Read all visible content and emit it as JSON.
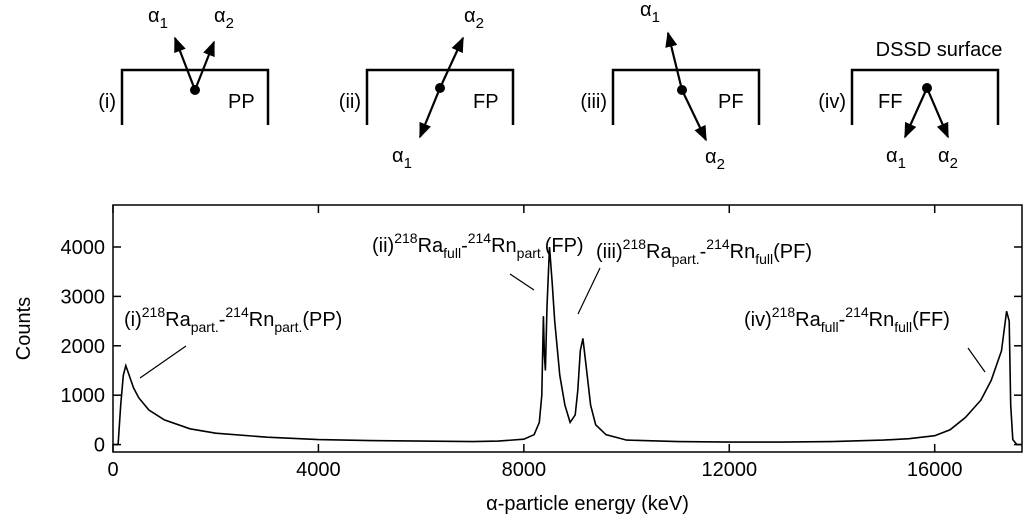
{
  "diagram": {
    "surface_label": "DSSD surface",
    "panels": [
      {
        "label": "(i)",
        "mode": "PP",
        "alphas": [
          {
            "symbol": "α",
            "index": "1"
          },
          {
            "symbol": "α",
            "index": "2"
          }
        ]
      },
      {
        "label": "(ii)",
        "mode": "FP",
        "alphas": [
          {
            "symbol": "α",
            "index": "1"
          },
          {
            "symbol": "α",
            "index": "2"
          }
        ]
      },
      {
        "label": "(iii)",
        "mode": "PF",
        "alphas": [
          {
            "symbol": "α",
            "index": "1"
          },
          {
            "symbol": "α",
            "index": "2"
          }
        ]
      },
      {
        "label": "(iv)",
        "mode": "FF",
        "alphas": [
          {
            "symbol": "α",
            "index": "1"
          },
          {
            "symbol": "α",
            "index": "2"
          }
        ]
      }
    ]
  },
  "chart_data": {
    "type": "line",
    "x_label": "α-particle energy (keV)",
    "y_label": "Counts",
    "xlim": [
      0,
      17700
    ],
    "xticks": [
      0,
      4000,
      8000,
      12000,
      16000
    ],
    "ylim": [
      -150,
      4850
    ],
    "yticks": [
      0,
      1000,
      2000,
      3000,
      4000
    ],
    "color": "#000000",
    "x": [
      0,
      100,
      150,
      200,
      250,
      300,
      400,
      500,
      700,
      1000,
      1500,
      2000,
      3000,
      4000,
      5000,
      6000,
      7000,
      7500,
      8000,
      8200,
      8300,
      8350,
      8380,
      8400,
      8420,
      8450,
      8500,
      8550,
      8600,
      8700,
      8800,
      8900,
      9000,
      9050,
      9100,
      9150,
      9200,
      9300,
      9400,
      9600,
      10000,
      11000,
      12000,
      13000,
      14000,
      15000,
      15500,
      16000,
      16300,
      16600,
      16900,
      17100,
      17300,
      17400,
      17450,
      17480,
      17520,
      17600,
      17700
    ],
    "values": [
      0,
      0,
      800,
      1400,
      1600,
      1450,
      1150,
      950,
      700,
      500,
      320,
      230,
      150,
      100,
      80,
      70,
      60,
      70,
      110,
      200,
      450,
      1000,
      2600,
      1800,
      1500,
      2800,
      4000,
      3300,
      2500,
      1400,
      800,
      450,
      600,
      1100,
      1900,
      2150,
      1700,
      800,
      400,
      200,
      90,
      60,
      50,
      50,
      60,
      90,
      120,
      180,
      300,
      550,
      900,
      1300,
      1900,
      2700,
      2500,
      800,
      100,
      0,
      0
    ],
    "annotations": [
      [
        {
          "text": "(i)"
        },
        {
          "text": "218",
          "script": "sup"
        },
        {
          "text": "Ra"
        },
        {
          "text": "part.",
          "script": "sub"
        },
        {
          "text": "-"
        },
        {
          "text": "214",
          "script": "sup"
        },
        {
          "text": "Rn"
        },
        {
          "text": "part.",
          "script": "sub"
        },
        {
          "text": "(PP)"
        }
      ],
      [
        {
          "text": "(ii)"
        },
        {
          "text": "218",
          "script": "sup"
        },
        {
          "text": "Ra"
        },
        {
          "text": "full",
          "script": "sub"
        },
        {
          "text": "-"
        },
        {
          "text": "214",
          "script": "sup"
        },
        {
          "text": "Rn"
        },
        {
          "text": "part.",
          "script": "sub"
        },
        {
          "text": "(FP)"
        }
      ],
      [
        {
          "text": "(iii)"
        },
        {
          "text": "218",
          "script": "sup"
        },
        {
          "text": "Ra"
        },
        {
          "text": "part.",
          "script": "sub"
        },
        {
          "text": "-"
        },
        {
          "text": "214",
          "script": "sup"
        },
        {
          "text": "Rn"
        },
        {
          "text": "full",
          "script": "sub"
        },
        {
          "text": "(PF)"
        }
      ],
      [
        {
          "text": "(iv)"
        },
        {
          "text": "218",
          "script": "sup"
        },
        {
          "text": "Ra"
        },
        {
          "text": "full",
          "script": "sub"
        },
        {
          "text": "-"
        },
        {
          "text": "214",
          "script": "sup"
        },
        {
          "text": "Rn"
        },
        {
          "text": "full",
          "script": "sub"
        },
        {
          "text": "(FF)"
        }
      ]
    ]
  }
}
